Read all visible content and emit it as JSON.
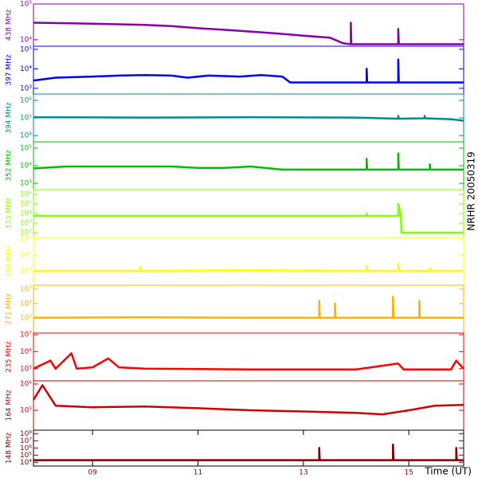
{
  "chart_data": [
    {
      "type": "line",
      "title": "438 MHz",
      "log": true,
      "color": "#8a00a8",
      "xlim": [
        7.88,
        16.04
      ],
      "ylim": [
        6600,
        100000
      ],
      "yticks": [
        {
          "value": 10000,
          "label": "10⁴"
        },
        {
          "value": 100000,
          "label": "10⁵"
        }
      ],
      "x": [
        7.88,
        8.5,
        9.0,
        9.5,
        10.0,
        10.5,
        11.0,
        11.5,
        12.0,
        12.5,
        13.0,
        13.5,
        13.75,
        13.9,
        13.9,
        13.91,
        14.8,
        14.8,
        14.81,
        16.04
      ],
      "values": [
        30000,
        29000,
        28000,
        27000,
        26000,
        24000,
        21000,
        19000,
        17000,
        15000,
        13000,
        11500,
        8000,
        7500,
        30000,
        7500,
        7500,
        20000,
        7500,
        7500
      ]
    },
    {
      "type": "line",
      "title": "397 MHz",
      "log": true,
      "color": "#0000ff",
      "xlim": [
        7.88,
        16.04
      ],
      "ylim": [
        510,
        145000
      ],
      "yticks": [
        {
          "value": 1000,
          "label": "10³"
        },
        {
          "value": 10000,
          "label": "10⁴"
        },
        {
          "value": 100000,
          "label": "10⁵"
        }
      ],
      "x": [
        7.88,
        8.3,
        9.0,
        9.5,
        10.0,
        10.5,
        10.8,
        11.2,
        11.8,
        12.2,
        12.6,
        12.75,
        14.2,
        14.2,
        14.21,
        14.8,
        14.8,
        14.81,
        16.04
      ],
      "values": [
        2500,
        3500,
        4000,
        4500,
        4800,
        4500,
        3500,
        4500,
        4000,
        4800,
        4000,
        2000,
        2000,
        10000,
        2000,
        2000,
        30000,
        2000,
        2000
      ]
    },
    {
      "type": "line",
      "title": "394 MHz",
      "log": true,
      "color": "#008c8c",
      "xlim": [
        7.88,
        16.04
      ],
      "ylim": [
        4400,
        2290000
      ],
      "yticks": [
        {
          "value": 10000,
          "label": "10⁴"
        },
        {
          "value": 100000,
          "label": "10⁵"
        },
        {
          "value": 1000000,
          "label": "10⁶"
        }
      ],
      "x": [
        7.88,
        10,
        12,
        14,
        14.8,
        14.8,
        14.81,
        15.3,
        15.3,
        15.31,
        15.8,
        16.04
      ],
      "values": [
        110000,
        105000,
        110000,
        105000,
        90000,
        130000,
        90000,
        95000,
        130000,
        95000,
        85000,
        70000
      ]
    },
    {
      "type": "line",
      "title": "352 MHz",
      "log": true,
      "color": "#00c000",
      "xlim": [
        7.88,
        16.04
      ],
      "ylim": [
        436,
        230000
      ],
      "yticks": [
        {
          "value": 1000,
          "label": "10³"
        },
        {
          "value": 10000,
          "label": "10⁴"
        },
        {
          "value": 100000,
          "label": "10⁵"
        }
      ],
      "x": [
        7.88,
        8.5,
        9.5,
        10.5,
        11.0,
        11.5,
        12.0,
        12.6,
        14.2,
        14.2,
        14.21,
        14.8,
        14.8,
        14.81,
        15.4,
        15.4,
        15.41,
        16.04
      ],
      "values": [
        7000,
        9000,
        9000,
        9000,
        7500,
        7500,
        9000,
        6000,
        6000,
        25000,
        6000,
        6000,
        50000,
        6000,
        6000,
        12000,
        6000,
        6000
      ]
    },
    {
      "type": "line",
      "title": "333 MHz",
      "log": true,
      "color": "#80ff00",
      "xlim": [
        7.88,
        16.04
      ],
      "ylim": [
        31.6,
        3160000
      ],
      "yticks": [
        {
          "value": 100,
          "label": "10²"
        },
        {
          "value": 1000,
          "label": "10³"
        },
        {
          "value": 10000,
          "label": "10⁴"
        },
        {
          "value": 100000,
          "label": "10⁵"
        },
        {
          "value": 1000000,
          "label": "10⁶"
        }
      ],
      "x": [
        7.88,
        14.2,
        14.2,
        14.21,
        14.8,
        14.8,
        14.85,
        14.86,
        16.04
      ],
      "values": [
        5600,
        5600,
        10000,
        5600,
        5600,
        100000,
        5600,
        100,
        100
      ]
    },
    {
      "type": "line",
      "title": "298 MHz",
      "log": true,
      "color": "#ffff00",
      "xlim": [
        7.88,
        16.04
      ],
      "ylim": [
        1260,
        1260000
      ],
      "yticks": [
        {
          "value": 10000,
          "label": "10⁴"
        },
        {
          "value": 100000,
          "label": "10⁵"
        },
        {
          "value": 1000000,
          "label": "10⁶"
        }
      ],
      "x": [
        7.88,
        9.9,
        9.9,
        9.91,
        12,
        14.2,
        14.2,
        14.21,
        14.8,
        14.8,
        14.81,
        15.4,
        15.4,
        15.41,
        16.04
      ],
      "values": [
        10000,
        10000,
        18000,
        10000,
        11000,
        10000,
        20000,
        10000,
        10000,
        30000,
        10000,
        10000,
        15000,
        10000,
        10000
      ]
    },
    {
      "type": "line",
      "title": "271 MHz",
      "log": true,
      "color": "#ffb000",
      "xlim": [
        7.88,
        16.04
      ],
      "ylim": [
        8700,
        19000000
      ],
      "yticks": [
        {
          "value": 100000,
          "label": "10⁵"
        },
        {
          "value": 1000000,
          "label": "10⁶"
        },
        {
          "value": 10000000,
          "label": "10⁷"
        }
      ],
      "x": [
        7.88,
        10,
        12,
        13.3,
        13.3,
        13.31,
        13.6,
        13.6,
        13.61,
        14.7,
        14.7,
        14.71,
        15.2,
        15.2,
        15.21,
        16.04
      ],
      "values": [
        100000,
        110000,
        100000,
        100000,
        1500000,
        100000,
        100000,
        1000000,
        100000,
        100000,
        3000000,
        100000,
        100000,
        1500000,
        100000,
        100000
      ]
    },
    {
      "type": "line",
      "title": "235 MHz",
      "log": true,
      "color": "#ff0000",
      "xlim": [
        7.88,
        16.04
      ],
      "ylim": [
        19300,
        12500000
      ],
      "yticks": [
        {
          "value": 100000,
          "label": "10⁵"
        },
        {
          "value": 1000000,
          "label": "10⁶"
        },
        {
          "value": 10000000,
          "label": "10⁷"
        }
      ],
      "x": [
        7.88,
        8.2,
        8.3,
        8.6,
        8.7,
        9.0,
        9.3,
        9.5,
        10,
        12,
        14,
        14.8,
        14.9,
        15.8,
        15.9,
        16.04
      ],
      "values": [
        100000,
        300000,
        100000,
        800000,
        100000,
        120000,
        400000,
        120000,
        100000,
        90000,
        90000,
        200000,
        90000,
        90000,
        300000,
        100000
      ]
    },
    {
      "type": "line",
      "title": "164 MHz",
      "log": true,
      "color": "#d00000",
      "xlim": [
        7.88,
        16.04
      ],
      "ylim": [
        17500,
        1320000
      ],
      "yticks": [
        {
          "value": 100000,
          "label": "10⁵"
        },
        {
          "value": 1000000,
          "label": "10⁶"
        }
      ],
      "x": [
        7.88,
        8.05,
        8.3,
        9,
        10,
        11,
        12,
        13,
        14,
        14.5,
        15,
        15.5,
        16.04
      ],
      "values": [
        250000,
        900000,
        150000,
        130000,
        140000,
        120000,
        100000,
        90000,
        80000,
        70000,
        100000,
        150000,
        160000
      ]
    },
    {
      "type": "line",
      "title": "148 MHz",
      "log": true,
      "color": "#800000",
      "xlim": [
        7.88,
        16.04
      ],
      "ylim": [
        3000,
        300000000
      ],
      "yticks": [
        {
          "value": 10000,
          "label": "10⁴"
        },
        {
          "value": 100000,
          "label": "10⁵"
        },
        {
          "value": 1000000,
          "label": "10⁶"
        },
        {
          "value": 10000000,
          "label": "10⁷"
        },
        {
          "value": 100000000,
          "label": "10⁸"
        }
      ],
      "x": [
        7.88,
        13.3,
        13.3,
        13.31,
        14.7,
        14.7,
        14.71,
        15.9,
        15.9,
        15.91,
        16.04
      ],
      "values": [
        20000,
        20000,
        1000000,
        20000,
        20000,
        3000000,
        20000,
        20000,
        1000000,
        20000,
        20000
      ],
      "xticks": [
        {
          "value": 9,
          "label": "09"
        },
        {
          "value": 11,
          "label": "11"
        },
        {
          "value": 13,
          "label": "13"
        },
        {
          "value": 15,
          "label": "15"
        }
      ],
      "xlabel": "Time (UT)",
      "annotation": "NRHR 20050319"
    }
  ]
}
